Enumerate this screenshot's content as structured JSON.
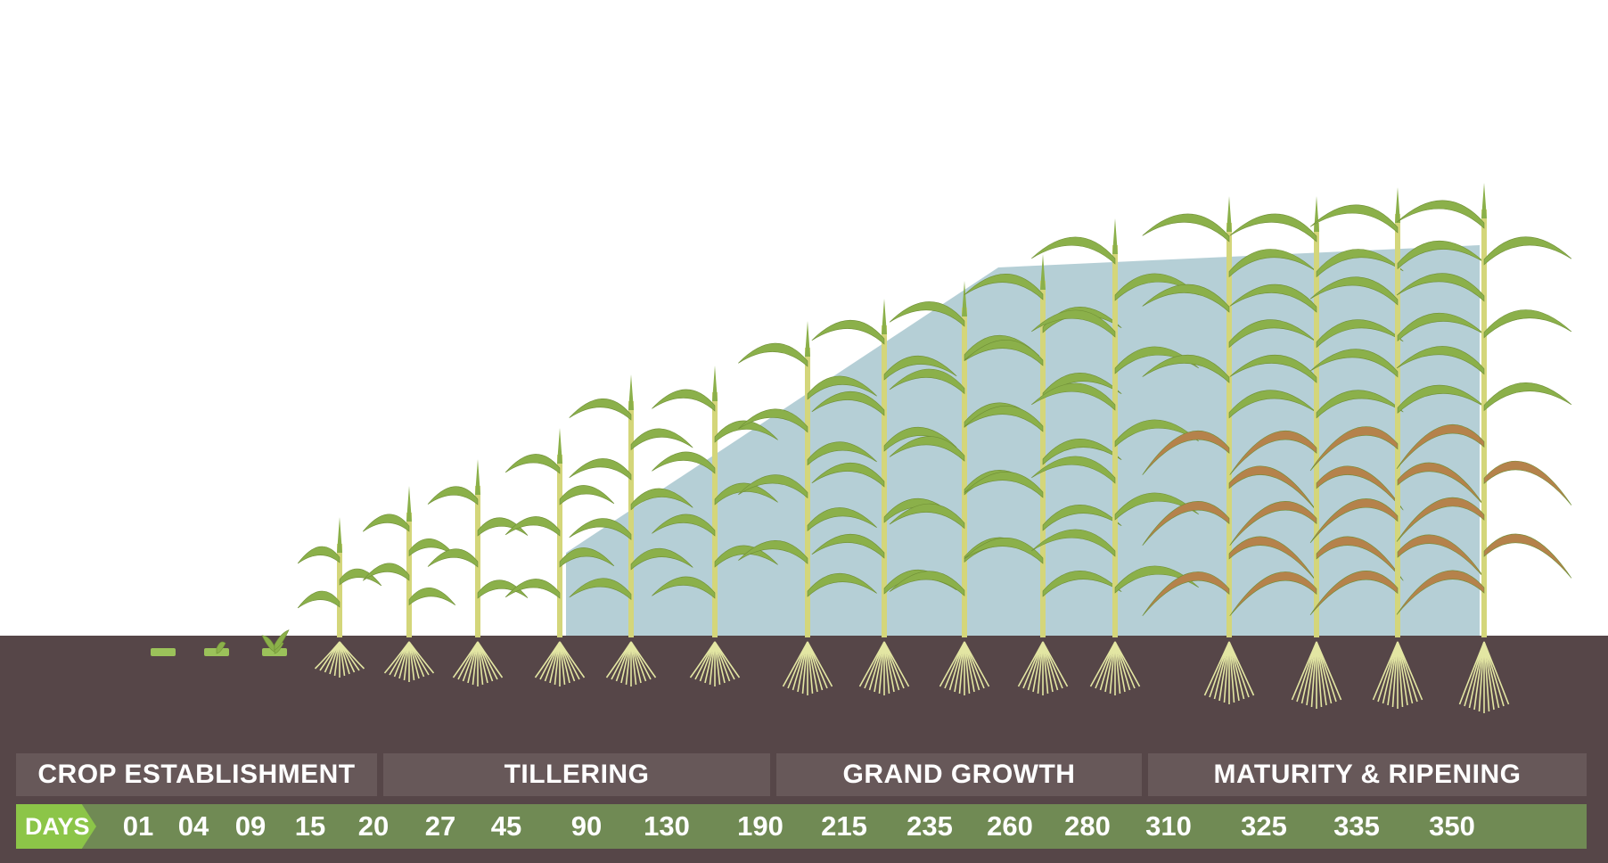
{
  "stages": [
    {
      "label": "CROP ESTABLISHMENT"
    },
    {
      "label": "TILLERING"
    },
    {
      "label": "GRAND GROWTH"
    },
    {
      "label": "MATURITY & RIPENING"
    }
  ],
  "days": {
    "label": "DAYS",
    "values": [
      "01",
      "04",
      "09",
      "15",
      "20",
      "27",
      "45",
      "90",
      "130",
      "190",
      "215",
      "235",
      "260",
      "280",
      "310",
      "325",
      "335",
      "350"
    ]
  },
  "colors": {
    "soil": "#564648",
    "stage_bar": "#675859",
    "days_bar": "#708a54",
    "days_tag": "#8cc548",
    "leaf": "#8bb04a",
    "stalk": "#d4d67a",
    "dry_leaf": "#b5824b",
    "root": "#e3e6a3",
    "canopy_fill": "#b5cfd6"
  },
  "plants": [
    {
      "day": "01",
      "stage": "cutting"
    },
    {
      "day": "04",
      "stage": "bud"
    },
    {
      "day": "09",
      "stage": "shoot"
    },
    {
      "day": "15",
      "stage": "seedling"
    },
    {
      "day": "20",
      "stage": "seedling"
    },
    {
      "day": "27",
      "stage": "young"
    },
    {
      "day": "45",
      "stage": "young"
    },
    {
      "day": "90",
      "stage": "tillering"
    },
    {
      "day": "130",
      "stage": "tillering"
    },
    {
      "day": "190",
      "stage": "tillering"
    },
    {
      "day": "215",
      "stage": "grand-growth"
    },
    {
      "day": "235",
      "stage": "grand-growth"
    },
    {
      "day": "260",
      "stage": "grand-growth"
    },
    {
      "day": "280",
      "stage": "grand-growth"
    },
    {
      "day": "310",
      "stage": "maturity"
    },
    {
      "day": "325",
      "stage": "maturity"
    },
    {
      "day": "335",
      "stage": "maturity"
    },
    {
      "day": "350",
      "stage": "maturity"
    }
  ]
}
